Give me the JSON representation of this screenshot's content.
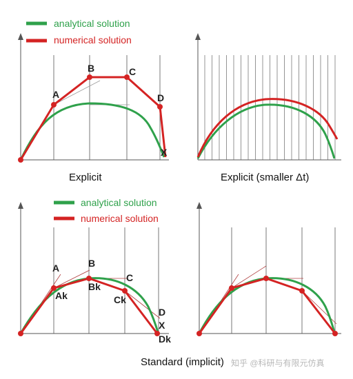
{
  "legend_top": {
    "analytical": "analytical solution",
    "numerical": "numerical solution"
  },
  "legend_bottom": {
    "analytical": "analytical solution",
    "numerical": "numerical solution"
  },
  "captions": {
    "explicit": "Explicit",
    "explicit_smaller": "Explicit (smaller Δt)",
    "standard": "Standard (implicit)"
  },
  "axis_label_x": "X",
  "points_top": [
    "A",
    "B",
    "C",
    "D"
  ],
  "points_bottom": [
    "A",
    "B",
    "C",
    "D"
  ],
  "points_bottom_k": [
    "Ak",
    "Bk",
    "Ck",
    "Dk"
  ],
  "watermark": "知乎 @科研与有限元仿真",
  "colors": {
    "analytical": "#2fa14b",
    "numerical": "#d42323",
    "grid": "#555555",
    "tangent": "#b04040"
  }
}
